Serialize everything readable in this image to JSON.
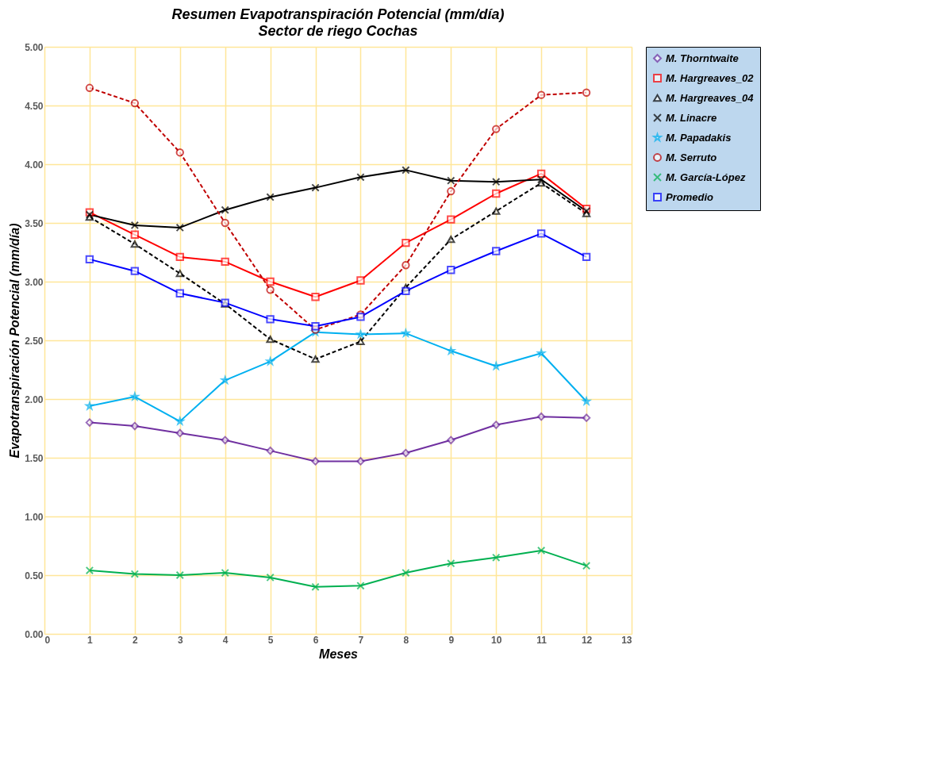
{
  "chart_data": {
    "type": "line",
    "title": "Resumen Evapotranspiración  Potencial (mm/día)",
    "subtitle": "Sector de riego Cochas",
    "xlabel": "Meses",
    "ylabel": "Evapotranspiración Potencial (mm/día)",
    "x": [
      1,
      2,
      3,
      4,
      5,
      6,
      7,
      8,
      9,
      10,
      11,
      12
    ],
    "xlim": [
      0,
      13
    ],
    "xticks": [
      0,
      1,
      2,
      3,
      4,
      5,
      6,
      7,
      8,
      9,
      10,
      11,
      12,
      13
    ],
    "ylim": [
      0,
      5
    ],
    "yticks": [
      {
        "value": 0,
        "label": "0.00"
      },
      {
        "value": 0.5,
        "label": "0.50"
      },
      {
        "value": 1,
        "label": "1.00"
      },
      {
        "value": 1.5,
        "label": "1.50"
      },
      {
        "value": 2,
        "label": "2.00"
      },
      {
        "value": 2.5,
        "label": "2.50"
      },
      {
        "value": 3,
        "label": "3.00"
      },
      {
        "value": 3.5,
        "label": "3.50"
      },
      {
        "value": 4,
        "label": "4.00"
      },
      {
        "value": 4.5,
        "label": "4.50"
      },
      {
        "value": 5,
        "label": "5.00"
      }
    ],
    "grid": true,
    "legend": "right",
    "series": [
      {
        "name": "M. Thorntwaite",
        "color": "#7030a0",
        "marker": "diamond",
        "line_style": "solid",
        "values": [
          1.8,
          1.77,
          1.71,
          1.65,
          1.56,
          1.47,
          1.47,
          1.54,
          1.65,
          1.78,
          1.85,
          1.84
        ]
      },
      {
        "name": "M. Hargreaves_02",
        "color": "#ff0000",
        "marker": "square",
        "line_style": "solid",
        "values": [
          3.59,
          3.4,
          3.21,
          3.17,
          3.0,
          2.87,
          3.01,
          3.33,
          3.53,
          3.75,
          3.92,
          3.62
        ]
      },
      {
        "name": "M. Hargreaves_04",
        "color": "#000000",
        "marker": "triangle",
        "line_style": "dashed",
        "values": [
          3.55,
          3.32,
          3.07,
          2.81,
          2.51,
          2.34,
          2.49,
          2.95,
          3.36,
          3.6,
          3.84,
          3.58
        ]
      },
      {
        "name": "M. Linacre",
        "color": "#000000",
        "marker": "cross",
        "line_style": "solid",
        "values": [
          3.57,
          3.48,
          3.46,
          3.61,
          3.72,
          3.8,
          3.89,
          3.95,
          3.86,
          3.85,
          3.87,
          3.6
        ]
      },
      {
        "name": "M. Papadakis",
        "color": "#00b0f0",
        "marker": "star",
        "line_style": "solid",
        "values": [
          1.94,
          2.02,
          1.81,
          2.16,
          2.32,
          2.57,
          2.55,
          2.56,
          2.41,
          2.28,
          2.39,
          1.98
        ]
      },
      {
        "name": "M. Serruto",
        "color": "#c00000",
        "marker": "circle",
        "line_style": "dashed",
        "values": [
          4.65,
          4.52,
          4.1,
          3.5,
          2.93,
          2.59,
          2.72,
          3.14,
          3.77,
          4.3,
          4.59,
          4.61
        ]
      },
      {
        "name": "M. García-López",
        "color": "#00b050",
        "marker": "cross",
        "line_style": "solid",
        "values": [
          0.54,
          0.51,
          0.5,
          0.52,
          0.48,
          0.4,
          0.41,
          0.52,
          0.6,
          0.65,
          0.71,
          0.58
        ]
      },
      {
        "name": "Promedio",
        "color": "#0000ff",
        "marker": "square",
        "line_style": "solid",
        "values": [
          3.19,
          3.09,
          2.9,
          2.82,
          2.68,
          2.62,
          2.7,
          2.92,
          3.1,
          3.26,
          3.41,
          3.21
        ]
      }
    ]
  }
}
